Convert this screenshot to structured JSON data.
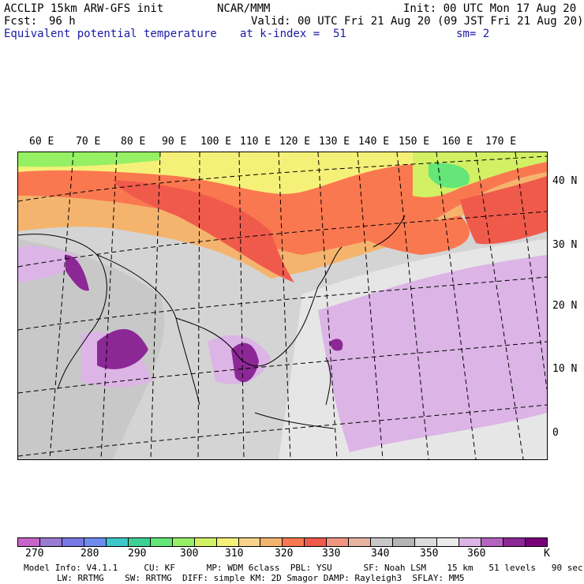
{
  "header": {
    "model": "ACCLIP 15km ARW-GFS init",
    "org": "NCAR/MMM",
    "init": "Init: 00 UTC Mon 17 Aug 20",
    "fcst_label": "Fcst:",
    "fcst_value": "96 h",
    "valid": "Valid: 00 UTC Fri 21 Aug 20 (09 JST Fri 21 Aug 20)",
    "field": "Equivalent potential temperature",
    "level": "at k-index =  51",
    "smooth": "sm= 2"
  },
  "map": {
    "lon_labels": [
      "60 E",
      "70 E",
      "80 E",
      "90 E",
      "100 E",
      "110 E",
      "120 E",
      "130 E",
      "140 E",
      "150 E",
      "160 E",
      "170 E"
    ],
    "lat_labels": [
      "40 N",
      "30 N",
      "20 N",
      "10 N",
      "0"
    ]
  },
  "colorbar": {
    "colors": [
      "#c864c8",
      "#9a7ad2",
      "#7878e6",
      "#6e8cf0",
      "#3cc8c8",
      "#3cd296",
      "#64e678",
      "#96f064",
      "#d2f064",
      "#f5f078",
      "#fad28c",
      "#f5b46e",
      "#fa7850",
      "#f05a4b",
      "#f09682",
      "#e6b4a0",
      "#c8c8c8",
      "#b4b4b4",
      "#dcdcdc",
      "#ebebeb",
      "#dcb4e6",
      "#b464be",
      "#8c2896",
      "#780078"
    ],
    "labels": [
      "270",
      "280",
      "290",
      "300",
      "310",
      "320",
      "330",
      "340",
      "350",
      "360",
      "K"
    ]
  },
  "footer": {
    "line1": "Model Info: V4.1.1     CU: KF      MP: WDM 6class  PBL: YSU      SF: Noah LSM    15 km   51 levels   90 sec",
    "line2": "LW: RRTMG    SW: RRTMG  DIFF: simple KM: 2D Smagor DAMP: Rayleigh3  SFLAY: MM5"
  }
}
